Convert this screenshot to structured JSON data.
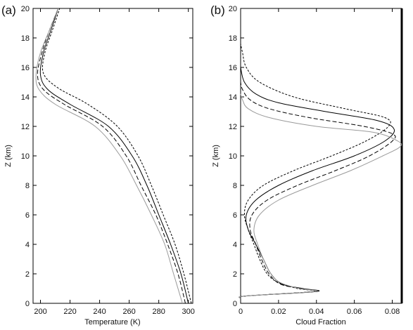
{
  "chart_data": [
    {
      "type": "line",
      "panel_label": "(a)",
      "xlabel": "Temperature (K)",
      "ylabel": "Z (km)",
      "xlim": [
        195,
        303
      ],
      "ylim": [
        0,
        20
      ],
      "xticks": [
        200,
        220,
        240,
        260,
        280,
        300
      ],
      "yticks": [
        0,
        2,
        4,
        6,
        8,
        10,
        12,
        14,
        16,
        18,
        20
      ],
      "series_styles": [
        {
          "color": "#000000",
          "dash": ""
        },
        {
          "color": "#000000",
          "dash": "6,3"
        },
        {
          "color": "#000000",
          "dash": "3,2"
        },
        {
          "color": "#9a9a9a",
          "dash": ""
        }
      ],
      "series": [
        {
          "points": [
            [
              300,
              0
            ],
            [
              295,
              2
            ],
            [
              288,
              4
            ],
            [
              280,
              6
            ],
            [
              272,
              8
            ],
            [
              262,
              10
            ],
            [
              246,
              12
            ],
            [
              220,
              13.5
            ],
            [
              205,
              14.5
            ],
            [
              200,
              15.5
            ],
            [
              202,
              17
            ],
            [
              207,
              18.5
            ],
            [
              212,
              20
            ]
          ]
        },
        {
          "points": [
            [
              298,
              0
            ],
            [
              293,
              2
            ],
            [
              286,
              4
            ],
            [
              278,
              6
            ],
            [
              268,
              8
            ],
            [
              258,
              10
            ],
            [
              242,
              12
            ],
            [
              216,
              13.5
            ],
            [
              202,
              14.5
            ],
            [
              198,
              15.5
            ],
            [
              201,
              17
            ],
            [
              206,
              18.5
            ],
            [
              212,
              20
            ]
          ]
        },
        {
          "points": [
            [
              302,
              0
            ],
            [
              297,
              2
            ],
            [
              291,
              4
            ],
            [
              283,
              6
            ],
            [
              275,
              8
            ],
            [
              266,
              10
            ],
            [
              252,
              12
            ],
            [
              232,
              13.5
            ],
            [
              212,
              14.6
            ],
            [
              202,
              15.6
            ],
            [
              203,
              17
            ],
            [
              208,
              18.5
            ],
            [
              213,
              20
            ]
          ]
        },
        {
          "points": [
            [
              296,
              0
            ],
            [
              290,
              2
            ],
            [
              284,
              4
            ],
            [
              275,
              6
            ],
            [
              265,
              8
            ],
            [
              254,
              10
            ],
            [
              237,
              12
            ],
            [
              210,
              13.5
            ],
            [
              199,
              14.5
            ],
            [
              197,
              15.5
            ],
            [
              200,
              17
            ],
            [
              206,
              18.5
            ],
            [
              212,
              20
            ]
          ]
        }
      ]
    },
    {
      "type": "line",
      "panel_label": "(b)",
      "xlabel": "Cloud Fraction",
      "ylabel": "Z (km)",
      "xlim": [
        0,
        0.085
      ],
      "ylim": [
        0,
        20
      ],
      "xticks": [
        0,
        0.02,
        0.04,
        0.06,
        0.08
      ],
      "xtick_labels": [
        "0",
        "0.02",
        "0.04",
        "0.06",
        "0.08"
      ],
      "yticks": [
        0,
        2,
        4,
        6,
        8,
        10,
        12,
        14,
        16,
        18,
        20
      ],
      "series_styles": [
        {
          "color": "#000000",
          "dash": ""
        },
        {
          "color": "#000000",
          "dash": "6,3"
        },
        {
          "color": "#000000",
          "dash": "3,2"
        },
        {
          "color": "#9a9a9a",
          "dash": ""
        }
      ],
      "series": [
        {
          "points": [
            [
              0,
              0.35
            ],
            [
              0.003,
              0.5
            ],
            [
              0.04,
              0.8
            ],
            [
              0.033,
              1.0
            ],
            [
              0.022,
              1.3
            ],
            [
              0.016,
              2.0
            ],
            [
              0.012,
              3.0
            ],
            [
              0.008,
              4.0
            ],
            [
              0.004,
              5.0
            ],
            [
              0.003,
              6.0
            ],
            [
              0.008,
              7.0
            ],
            [
              0.02,
              8.0
            ],
            [
              0.038,
              9.0
            ],
            [
              0.06,
              10.0
            ],
            [
              0.076,
              11.0
            ],
            [
              0.081,
              11.8
            ],
            [
              0.072,
              12.4
            ],
            [
              0.045,
              13.0
            ],
            [
              0.02,
              13.6
            ],
            [
              0.008,
              14.2
            ],
            [
              0.002,
              15.0
            ],
            [
              0,
              16.0
            ]
          ]
        },
        {
          "points": [
            [
              0,
              0.35
            ],
            [
              0.003,
              0.5
            ],
            [
              0.039,
              0.8
            ],
            [
              0.032,
              1.0
            ],
            [
              0.021,
              1.3
            ],
            [
              0.015,
              2.0
            ],
            [
              0.011,
              3.0
            ],
            [
              0.008,
              4.0
            ],
            [
              0.005,
              5.0
            ],
            [
              0.006,
              6.0
            ],
            [
              0.014,
              7.0
            ],
            [
              0.03,
              8.0
            ],
            [
              0.05,
              9.0
            ],
            [
              0.068,
              10.0
            ],
            [
              0.08,
              11.0
            ],
            [
              0.08,
              11.5
            ],
            [
              0.065,
              12.0
            ],
            [
              0.036,
              12.6
            ],
            [
              0.015,
              13.2
            ],
            [
              0.005,
              13.8
            ],
            [
              0.001,
              14.5
            ],
            [
              0,
              15.0
            ]
          ]
        },
        {
          "points": [
            [
              0,
              0.35
            ],
            [
              0.003,
              0.5
            ],
            [
              0.038,
              0.8
            ],
            [
              0.03,
              1.0
            ],
            [
              0.02,
              1.4
            ],
            [
              0.014,
              2.0
            ],
            [
              0.01,
              3.0
            ],
            [
              0.007,
              4.0
            ],
            [
              0.004,
              5.0
            ],
            [
              0.002,
              6.0
            ],
            [
              0.004,
              7.0
            ],
            [
              0.012,
              8.0
            ],
            [
              0.028,
              9.0
            ],
            [
              0.048,
              10.0
            ],
            [
              0.066,
              11.0
            ],
            [
              0.078,
              12.0
            ],
            [
              0.076,
              12.6
            ],
            [
              0.055,
              13.2
            ],
            [
              0.028,
              14.0
            ],
            [
              0.01,
              15.0
            ],
            [
              0.003,
              16.0
            ],
            [
              0.001,
              17.0
            ],
            [
              0,
              17.6
            ]
          ]
        },
        {
          "points": [
            [
              0,
              0.35
            ],
            [
              0.003,
              0.5
            ],
            [
              0.039,
              0.8
            ],
            [
              0.031,
              1.0
            ],
            [
              0.021,
              1.4
            ],
            [
              0.016,
              2.0
            ],
            [
              0.012,
              3.0
            ],
            [
              0.009,
              4.0
            ],
            [
              0.007,
              5.0
            ],
            [
              0.01,
              6.0
            ],
            [
              0.02,
              7.0
            ],
            [
              0.038,
              8.0
            ],
            [
              0.058,
              9.0
            ],
            [
              0.075,
              10.0
            ],
            [
              0.084,
              10.6
            ],
            [
              0.083,
              11.0
            ],
            [
              0.07,
              11.6
            ],
            [
              0.04,
              12.0
            ],
            [
              0.015,
              12.6
            ],
            [
              0.004,
              13.2
            ],
            [
              0.001,
              13.8
            ],
            [
              0,
              14.2
            ]
          ]
        }
      ]
    }
  ]
}
